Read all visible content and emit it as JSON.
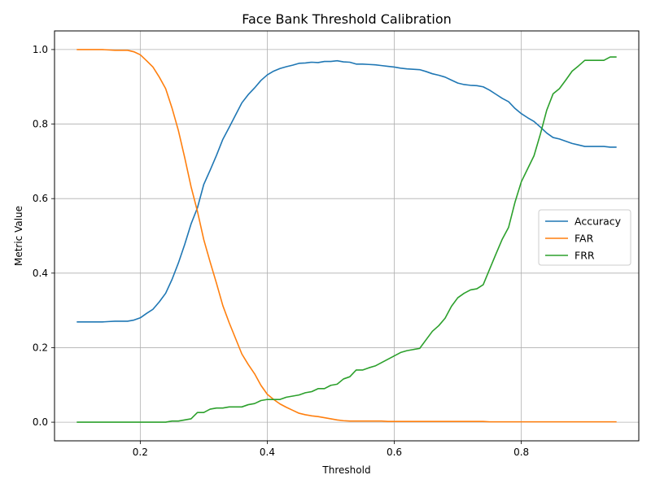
{
  "chart_data": {
    "type": "line",
    "title": "Face Bank Threshold Calibration",
    "xlabel": "Threshold",
    "ylabel": "Metric Value",
    "xlim": [
      0.065,
      0.985
    ],
    "ylim": [
      -0.05,
      1.05
    ],
    "xticks": [
      0.2,
      0.4,
      0.6,
      0.8
    ],
    "xtick_labels": [
      "0.2",
      "0.4",
      "0.6",
      "0.8"
    ],
    "yticks": [
      0.0,
      0.2,
      0.4,
      0.6,
      0.8,
      1.0
    ],
    "ytick_labels": [
      "0.0",
      "0.2",
      "0.4",
      "0.6",
      "0.8",
      "1.0"
    ],
    "grid": true,
    "legend_position": "center-right",
    "x": [
      0.1,
      0.11,
      0.12,
      0.13,
      0.14,
      0.15,
      0.16,
      0.17,
      0.18,
      0.19,
      0.2,
      0.21,
      0.22,
      0.23,
      0.24,
      0.25,
      0.26,
      0.27,
      0.28,
      0.29,
      0.3,
      0.31,
      0.32,
      0.33,
      0.34,
      0.35,
      0.36,
      0.37,
      0.38,
      0.39,
      0.4,
      0.41,
      0.42,
      0.43,
      0.44,
      0.45,
      0.46,
      0.47,
      0.48,
      0.49,
      0.5,
      0.51,
      0.52,
      0.53,
      0.54,
      0.55,
      0.56,
      0.57,
      0.58,
      0.59,
      0.6,
      0.61,
      0.62,
      0.63,
      0.64,
      0.65,
      0.66,
      0.67,
      0.68,
      0.69,
      0.7,
      0.71,
      0.72,
      0.73,
      0.74,
      0.75,
      0.76,
      0.77,
      0.78,
      0.79,
      0.8,
      0.81,
      0.82,
      0.83,
      0.84,
      0.85,
      0.86,
      0.87,
      0.88,
      0.89,
      0.9,
      0.91,
      0.92,
      0.93,
      0.94,
      0.95
    ],
    "series": [
      {
        "name": "Accuracy",
        "color": "#1f77b4",
        "values": [
          0.269,
          0.269,
          0.269,
          0.269,
          0.269,
          0.27,
          0.271,
          0.271,
          0.271,
          0.274,
          0.28,
          0.292,
          0.303,
          0.323,
          0.346,
          0.383,
          0.427,
          0.477,
          0.532,
          0.575,
          0.638,
          0.676,
          0.716,
          0.759,
          0.791,
          0.824,
          0.857,
          0.879,
          0.897,
          0.917,
          0.932,
          0.942,
          0.949,
          0.954,
          0.958,
          0.963,
          0.964,
          0.966,
          0.965,
          0.968,
          0.968,
          0.97,
          0.967,
          0.966,
          0.961,
          0.961,
          0.96,
          0.959,
          0.957,
          0.955,
          0.953,
          0.95,
          0.948,
          0.947,
          0.946,
          0.941,
          0.935,
          0.931,
          0.926,
          0.918,
          0.91,
          0.906,
          0.904,
          0.903,
          0.9,
          0.891,
          0.88,
          0.869,
          0.86,
          0.842,
          0.828,
          0.817,
          0.807,
          0.792,
          0.776,
          0.764,
          0.76,
          0.754,
          0.748,
          0.744,
          0.74,
          0.74,
          0.74,
          0.74,
          0.738,
          0.738
        ]
      },
      {
        "name": "FAR",
        "color": "#ff7f0e",
        "values": [
          1.0,
          1.0,
          1.0,
          1.0,
          1.0,
          0.999,
          0.998,
          0.998,
          0.998,
          0.994,
          0.986,
          0.97,
          0.953,
          0.926,
          0.895,
          0.843,
          0.783,
          0.71,
          0.632,
          0.566,
          0.49,
          0.43,
          0.373,
          0.313,
          0.267,
          0.225,
          0.183,
          0.155,
          0.13,
          0.099,
          0.075,
          0.061,
          0.049,
          0.04,
          0.032,
          0.024,
          0.02,
          0.017,
          0.015,
          0.012,
          0.009,
          0.006,
          0.004,
          0.003,
          0.003,
          0.003,
          0.003,
          0.003,
          0.003,
          0.002,
          0.002,
          0.002,
          0.002,
          0.002,
          0.002,
          0.002,
          0.002,
          0.002,
          0.002,
          0.002,
          0.002,
          0.002,
          0.002,
          0.002,
          0.002,
          0.001,
          0.001,
          0.001,
          0.001,
          0.001,
          0.001,
          0.001,
          0.001,
          0.001,
          0.001,
          0.001,
          0.001,
          0.001,
          0.001,
          0.001,
          0.001,
          0.001,
          0.001,
          0.001,
          0.001,
          0.001
        ]
      },
      {
        "name": "FRR",
        "color": "#2ca02c",
        "values": [
          0.0,
          0.0,
          0.0,
          0.0,
          0.0,
          0.0,
          0.0,
          0.0,
          0.0,
          0.0,
          0.0,
          0.0,
          0.0,
          0.0,
          0.0,
          0.003,
          0.003,
          0.006,
          0.009,
          0.026,
          0.026,
          0.035,
          0.038,
          0.038,
          0.041,
          0.041,
          0.041,
          0.047,
          0.05,
          0.058,
          0.061,
          0.061,
          0.061,
          0.067,
          0.07,
          0.073,
          0.079,
          0.082,
          0.09,
          0.09,
          0.099,
          0.102,
          0.116,
          0.122,
          0.14,
          0.14,
          0.146,
          0.151,
          0.16,
          0.169,
          0.178,
          0.187,
          0.192,
          0.195,
          0.198,
          0.221,
          0.244,
          0.259,
          0.279,
          0.311,
          0.334,
          0.346,
          0.355,
          0.358,
          0.369,
          0.41,
          0.451,
          0.491,
          0.523,
          0.59,
          0.645,
          0.68,
          0.715,
          0.773,
          0.837,
          0.881,
          0.895,
          0.918,
          0.942,
          0.956,
          0.971,
          0.971,
          0.971,
          0.971,
          0.98,
          0.98
        ]
      }
    ]
  }
}
